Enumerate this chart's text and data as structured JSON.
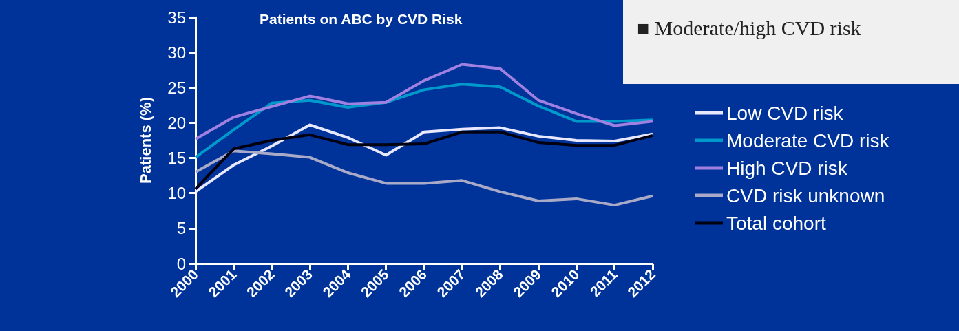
{
  "chart_data": {
    "type": "line",
    "title": "Patients on ABC by CVD Risk",
    "ylabel": "Patients (%)",
    "categories": [
      "2000",
      "2001",
      "2002",
      "2003",
      "2004",
      "2005",
      "2006",
      "2007",
      "2008",
      "2009",
      "2010",
      "2011",
      "2012"
    ],
    "series": [
      {
        "name": "Low CVD risk",
        "color": "#e8e8ff",
        "values": [
          10.2,
          14.0,
          16.7,
          19.7,
          17.9,
          15.4,
          18.7,
          19.1,
          19.3,
          18.1,
          17.5,
          17.4,
          18.4
        ]
      },
      {
        "name": "Moderate CVD risk",
        "color": "#0099cc",
        "values": [
          15.1,
          19.0,
          22.8,
          23.2,
          22.2,
          22.9,
          24.7,
          25.5,
          25.1,
          22.4,
          20.2,
          20.2,
          20.4
        ]
      },
      {
        "name": "High CVD risk",
        "color": "#a080e0",
        "values": [
          17.7,
          20.8,
          22.3,
          23.8,
          22.7,
          22.9,
          26.0,
          28.3,
          27.7,
          23.2,
          21.3,
          19.6,
          20.2
        ]
      },
      {
        "name": "CVD risk unknown",
        "color": "#a8aac8",
        "values": [
          13.0,
          16.0,
          15.6,
          15.1,
          12.9,
          11.4,
          11.4,
          11.8,
          10.2,
          8.9,
          9.2,
          8.3,
          9.6
        ]
      },
      {
        "name": "Total cohort",
        "color": "#000010",
        "values": [
          10.6,
          16.3,
          17.5,
          18.3,
          16.9,
          16.9,
          17.0,
          18.7,
          18.7,
          17.2,
          16.8,
          16.8,
          18.2
        ]
      }
    ],
    "ylim": [
      0,
      35
    ],
    "yticks": [
      0,
      5,
      10,
      15,
      20,
      25,
      30,
      35
    ],
    "annotations": [
      "■ Moderate/high CVD risk"
    ],
    "legend": "right",
    "grid": false,
    "marker": "none",
    "line_style": "solid"
  }
}
